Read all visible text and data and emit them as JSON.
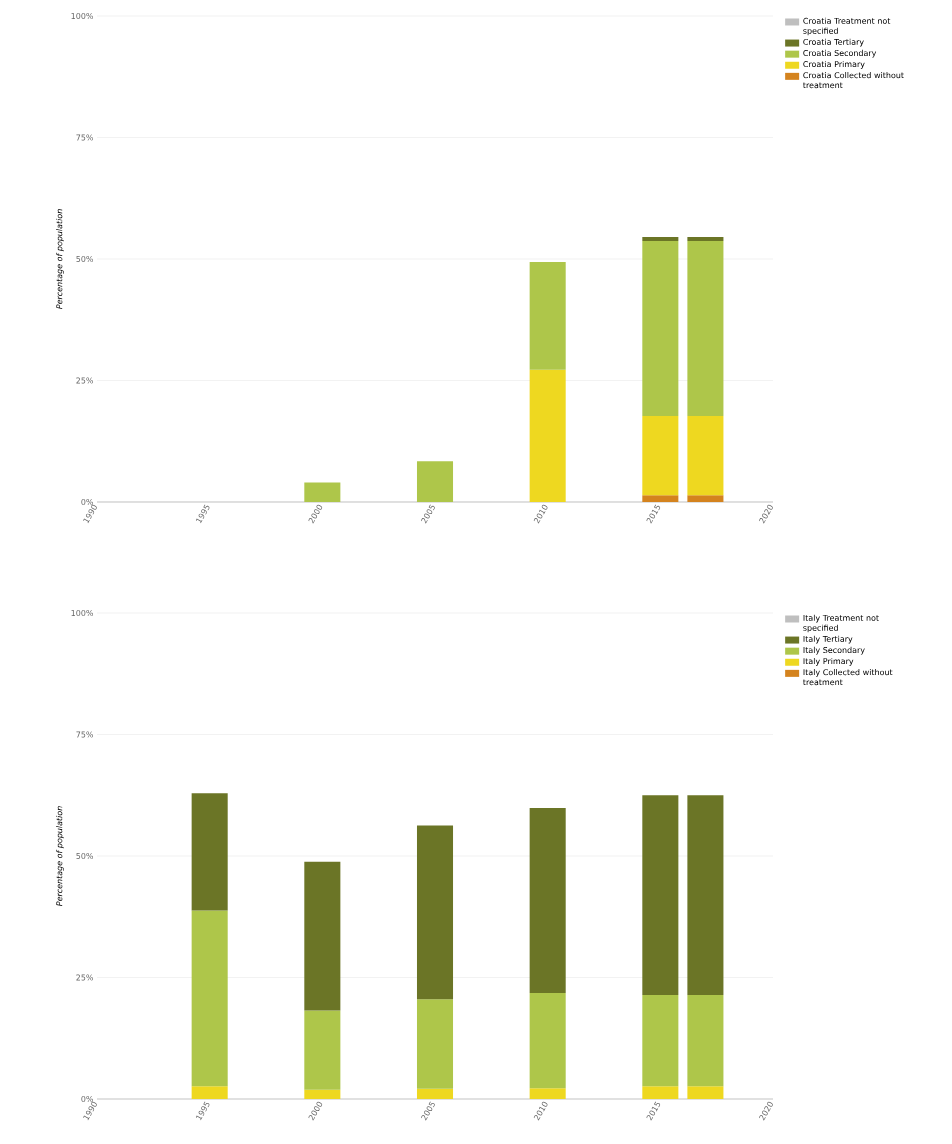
{
  "chart_data": [
    {
      "type": "bar",
      "stacked": true,
      "ylabel": "Percentage of population",
      "x": [
        2000,
        2005,
        2010,
        2015,
        2017
      ],
      "series": [
        {
          "name": "Croatia Collected without treatment",
          "color": "#d4831e",
          "values": [
            null,
            null,
            null,
            1.4,
            1.4
          ]
        },
        {
          "name": "Croatia Primary",
          "color": "#eed820",
          "values": [
            null,
            null,
            27.2,
            16.3,
            16.3
          ]
        },
        {
          "name": "Croatia Secondary",
          "color": "#aec64a",
          "values": [
            4,
            8.4,
            22.2,
            36.0,
            36.0
          ]
        },
        {
          "name": "Croatia Tertiary",
          "color": "#6b7526",
          "values": [
            null,
            null,
            null,
            0.8,
            0.8
          ]
        },
        {
          "name": "Croatia Treatment not specified",
          "color": "#bfbfbf",
          "values": [
            null,
            null,
            null,
            null,
            null
          ]
        }
      ],
      "xlim": [
        1990,
        2020
      ],
      "xticks": [
        1990,
        1995,
        2000,
        2005,
        2010,
        2015,
        2020
      ],
      "ylim": [
        0,
        100
      ],
      "yticks": [
        {
          "value": 0,
          "label": "0%"
        },
        {
          "value": 25,
          "label": "25%"
        },
        {
          "value": 50,
          "label": "50%"
        },
        {
          "value": 75,
          "label": "75%"
        },
        {
          "value": 100,
          "label": "100%"
        }
      ],
      "grid": "y",
      "legend": "right"
    },
    {
      "type": "bar",
      "stacked": true,
      "ylabel": "Percentage of population",
      "x": [
        1995,
        2000,
        2005,
        2010,
        2015,
        2017
      ],
      "series": [
        {
          "name": "Italy Collected without treatment",
          "color": "#d4831e",
          "values": [
            null,
            null,
            null,
            null,
            null,
            null
          ]
        },
        {
          "name": "Italy Primary",
          "color": "#eed820",
          "values": [
            2.6,
            1.9,
            2.1,
            2.2,
            2.6,
            2.6
          ]
        },
        {
          "name": "Italy Secondary",
          "color": "#aec64a",
          "values": [
            36.2,
            16.3,
            18.4,
            19.6,
            18.8,
            18.8
          ]
        },
        {
          "name": "Italy Tertiary",
          "color": "#6b7526",
          "values": [
            24.1,
            30.6,
            35.8,
            38.1,
            41.1,
            41.1
          ]
        },
        {
          "name": "Italy Treatment not specified",
          "color": "#bfbfbf",
          "values": [
            null,
            null,
            null,
            null,
            null,
            null
          ]
        }
      ],
      "xlim": [
        1990,
        2020
      ],
      "xticks": [
        1990,
        1995,
        2000,
        2005,
        2010,
        2015,
        2020
      ],
      "ylim": [
        0,
        100
      ],
      "yticks": [
        {
          "value": 0,
          "label": "0%"
        },
        {
          "value": 25,
          "label": "25%"
        },
        {
          "value": 50,
          "label": "50%"
        },
        {
          "value": 75,
          "label": "75%"
        },
        {
          "value": 100,
          "label": "100%"
        }
      ],
      "grid": "y",
      "legend": "right"
    }
  ]
}
